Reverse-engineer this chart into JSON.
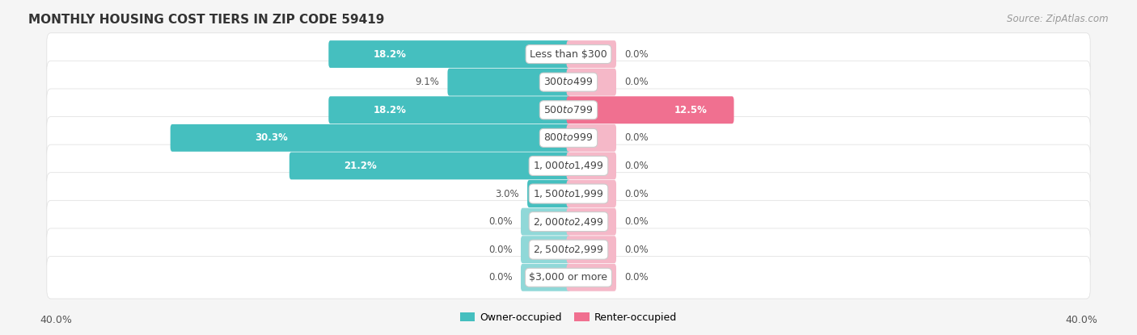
{
  "title": "MONTHLY HOUSING COST TIERS IN ZIP CODE 59419",
  "source": "Source: ZipAtlas.com",
  "categories": [
    "Less than $300",
    "$300 to $499",
    "$500 to $799",
    "$800 to $999",
    "$1,000 to $1,499",
    "$1,500 to $1,999",
    "$2,000 to $2,499",
    "$2,500 to $2,999",
    "$3,000 or more"
  ],
  "owner_values": [
    18.2,
    9.1,
    18.2,
    30.3,
    21.2,
    3.0,
    0.0,
    0.0,
    0.0
  ],
  "renter_values": [
    0.0,
    0.0,
    12.5,
    0.0,
    0.0,
    0.0,
    0.0,
    0.0,
    0.0
  ],
  "owner_color": "#45bfbf",
  "renter_color": "#f07090",
  "owner_color_light": "#90d8d8",
  "renter_color_light": "#f5b8c8",
  "axis_max": 40.0,
  "stub_size": 3.5,
  "background_color": "#f5f5f5",
  "row_bg_color": "#ffffff",
  "row_border_color": "#dddddd",
  "label_text_color": "#555555",
  "title_color": "#333333",
  "source_color": "#999999",
  "cat_label_color": "#444444",
  "on_bar_label_color": "#ffffff",
  "threshold_for_inside_label": 12.0
}
